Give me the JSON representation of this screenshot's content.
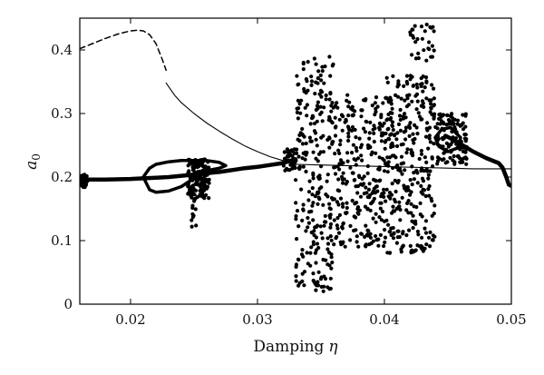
{
  "chart_data": {
    "type": "scatter",
    "title": "",
    "xlabel": "Damping",
    "xlabel_symbol": "η",
    "ylabel_base": "a",
    "ylabel_sub": "0",
    "xlim": [
      0.016,
      0.05
    ],
    "ylim": [
      0.0,
      0.45
    ],
    "x_ticks": [
      0.02,
      0.03,
      0.04,
      0.05
    ],
    "x_tick_labels": [
      "0.02",
      "0.03",
      "0.04",
      "0.05"
    ],
    "y_ticks": [
      0.0,
      0.1,
      0.2,
      0.3,
      0.4
    ],
    "y_tick_labels": [
      "0",
      "0.1",
      "0.2",
      "0.3",
      "0.4"
    ],
    "grid": false,
    "series": [
      {
        "style": "dashed-line",
        "x": [
          0.016,
          0.017,
          0.018,
          0.019,
          0.02,
          0.0205,
          0.021,
          0.0215,
          0.022,
          0.0225,
          0.0228
        ],
        "y": [
          0.402,
          0.41,
          0.418,
          0.425,
          0.43,
          0.431,
          0.43,
          0.424,
          0.41,
          0.385,
          0.368
        ]
      },
      {
        "style": "thin-line",
        "x": [
          0.0228,
          0.0235,
          0.024,
          0.025,
          0.026,
          0.027,
          0.028,
          0.029,
          0.03,
          0.031,
          0.032,
          0.033
        ],
        "y": [
          0.348,
          0.328,
          0.317,
          0.3,
          0.285,
          0.272,
          0.26,
          0.249,
          0.24,
          0.232,
          0.226,
          0.221
        ]
      },
      {
        "style": "thin-line",
        "x": [
          0.033,
          0.035,
          0.037,
          0.039,
          0.041,
          0.043,
          0.045,
          0.047,
          0.049,
          0.05
        ],
        "y": [
          0.22,
          0.219,
          0.218,
          0.217,
          0.216,
          0.215,
          0.214,
          0.213,
          0.213,
          0.213
        ]
      },
      {
        "style": "thick-line",
        "x": [
          0.016,
          0.018,
          0.02,
          0.021,
          0.022,
          0.023,
          0.024,
          0.025,
          0.026,
          0.027,
          0.028,
          0.029,
          0.03,
          0.031,
          0.032,
          0.0325,
          0.033
        ],
        "y": [
          0.196,
          0.196,
          0.197,
          0.198,
          0.199,
          0.2,
          0.202,
          0.204,
          0.206,
          0.208,
          0.211,
          0.214,
          0.216,
          0.219,
          0.222,
          0.225,
          0.228
        ]
      },
      {
        "style": "thick-line",
        "x": [
          0.0448,
          0.0455,
          0.046,
          0.047,
          0.048,
          0.049,
          0.0493,
          0.0496,
          0.0498,
          0.05
        ],
        "y": [
          0.265,
          0.258,
          0.252,
          0.24,
          0.23,
          0.222,
          0.215,
          0.2,
          0.188,
          0.186
        ]
      },
      {
        "style": "loop",
        "x": [
          0.021,
          0.0215,
          0.022,
          0.023,
          0.024,
          0.025,
          0.026,
          0.027,
          0.0275,
          0.027,
          0.026,
          0.025,
          0.024,
          0.023,
          0.022,
          0.0215,
          0.021
        ],
        "y": [
          0.2,
          0.214,
          0.22,
          0.224,
          0.226,
          0.226,
          0.226,
          0.223,
          0.218,
          0.214,
          0.21,
          0.198,
          0.185,
          0.178,
          0.176,
          0.18,
          0.2
        ]
      },
      {
        "style": "loop",
        "x": [
          0.044,
          0.0445,
          0.0452,
          0.046,
          0.0458,
          0.045,
          0.0443,
          0.044
        ],
        "y": [
          0.262,
          0.275,
          0.278,
          0.262,
          0.246,
          0.24,
          0.248,
          0.262
        ]
      }
    ],
    "scatter_clusters": [
      {
        "x_range": [
          0.016,
          0.0166
        ],
        "y_range": [
          0.184,
          0.204
        ],
        "count": 40
      },
      {
        "x_range": [
          0.0245,
          0.0262
        ],
        "y_range": [
          0.165,
          0.228
        ],
        "count": 150
      },
      {
        "x_range": [
          0.0248,
          0.0252
        ],
        "y_range": [
          0.12,
          0.165
        ],
        "count": 10
      },
      {
        "x_range": [
          0.032,
          0.033
        ],
        "y_range": [
          0.21,
          0.245
        ],
        "count": 40
      },
      {
        "x_range": [
          0.033,
          0.036
        ],
        "y_range": [
          0.02,
          0.39
        ],
        "count": 260
      },
      {
        "x_range": [
          0.036,
          0.04
        ],
        "y_range": [
          0.09,
          0.33
        ],
        "count": 260
      },
      {
        "x_range": [
          0.04,
          0.044
        ],
        "y_range": [
          0.08,
          0.36
        ],
        "count": 320
      },
      {
        "x_range": [
          0.042,
          0.044
        ],
        "y_range": [
          0.38,
          0.44
        ],
        "count": 30
      },
      {
        "x_range": [
          0.044,
          0.0465
        ],
        "y_range": [
          0.22,
          0.3
        ],
        "count": 110
      }
    ]
  }
}
